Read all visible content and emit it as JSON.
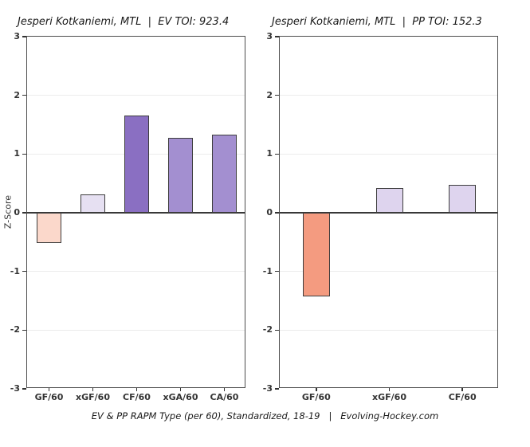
{
  "caption": "EV & PP RAPM Type (per 60), Standardized, 18-19   |   Evolving-Hockey.com",
  "chart_data": [
    {
      "type": "bar",
      "title": "Jesperi Kotkaniemi, MTL  |  EV TOI: 923.4",
      "ylabel": "Z-Score",
      "xlabel": "",
      "categories": [
        "GF/60",
        "xGF/60",
        "CF/60",
        "xGA/60",
        "CA/60"
      ],
      "values": [
        -0.52,
        0.31,
        1.66,
        1.28,
        1.33
      ],
      "bar_colors": [
        "#fbd8cb",
        "#e6e0f2",
        "#8a6fc2",
        "#a38fd0",
        "#a38fd0"
      ],
      "ylim": [
        -3,
        3
      ],
      "yticks": [
        3,
        2,
        1,
        0,
        -1,
        -2,
        -3
      ],
      "grid": true,
      "legend": "none"
    },
    {
      "type": "bar",
      "title": "Jesperi Kotkaniemi, MTL  |  PP TOI: 152.3",
      "ylabel": "",
      "xlabel": "",
      "categories": [
        "GF/60",
        "xGF/60",
        "CF/60"
      ],
      "values": [
        -1.43,
        0.42,
        0.47
      ],
      "bar_colors": [
        "#f49b80",
        "#ded4ee",
        "#ded4ee"
      ],
      "ylim": [
        -3,
        3
      ],
      "yticks": [
        3,
        2,
        1,
        0,
        -1,
        -2,
        -3
      ],
      "grid": true,
      "legend": "none"
    }
  ]
}
